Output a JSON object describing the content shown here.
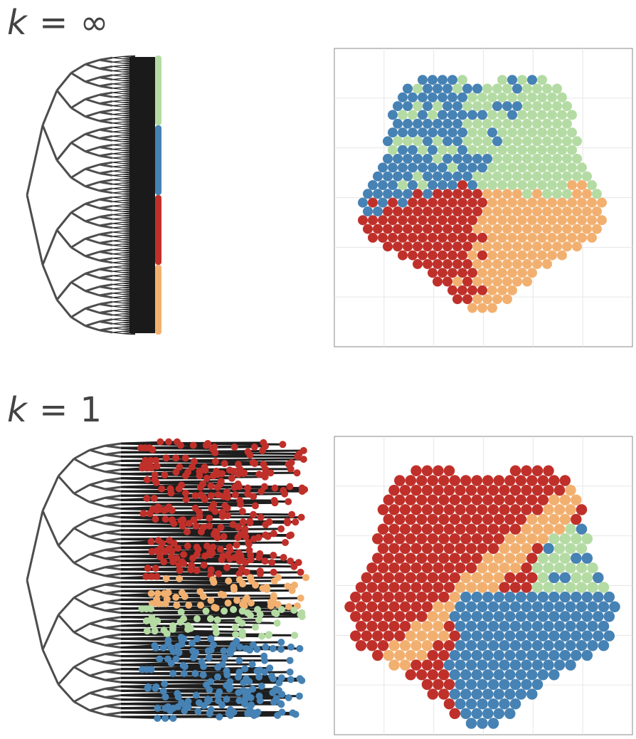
{
  "panels": [
    {
      "k_symbol": "k",
      "eq": "=",
      "k_value": "∞"
    },
    {
      "k_symbol": "k",
      "eq": "=",
      "k_value": "1"
    }
  ],
  "colors": {
    "light_green": "#b4dba3",
    "blue": "#4682b4",
    "red": "#c0302a",
    "orange": "#f2b070",
    "tree": "#4d4d4d",
    "frame": "#888888",
    "grid": "#e6e6e6"
  },
  "legend_bar_order": [
    "light_green",
    "blue",
    "red",
    "orange"
  ]
}
